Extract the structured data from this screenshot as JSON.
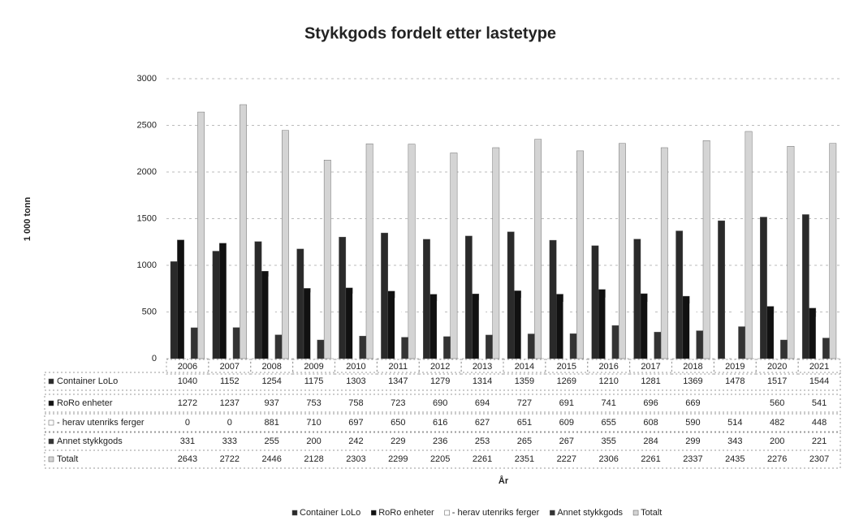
{
  "chart_data": {
    "type": "bar",
    "title": "Stykkgods fordelt etter lastetype",
    "y_label": "1 000 tonn",
    "x_label": "År",
    "categories": [
      "2006",
      "2007",
      "2008",
      "2009",
      "2010",
      "2011",
      "2012",
      "2013",
      "2014",
      "2015",
      "2016",
      "2017",
      "2018",
      "2019",
      "2020",
      "2021"
    ],
    "ylim": [
      0,
      3000
    ],
    "yticks": [
      0,
      500,
      1000,
      1500,
      2000,
      2500,
      3000
    ],
    "grid": true,
    "legend": "bottom",
    "series": [
      {
        "name": "Container LoLo",
        "color": "#2a2a2a",
        "values": [
          1040,
          1152,
          1254,
          1175,
          1303,
          1347,
          1279,
          1314,
          1359,
          1269,
          1210,
          1281,
          1369,
          1478,
          1517,
          1544
        ]
      },
      {
        "name": "RoRo enheter",
        "color": "#111111",
        "values": [
          1272,
          1237,
          937,
          753,
          758,
          723,
          690,
          694,
          727,
          691,
          741,
          696,
          669,
          null,
          560,
          541
        ]
      },
      {
        "name": "- herav utenriks ferger",
        "color": "#ffffff",
        "values": [
          0,
          0,
          881,
          710,
          697,
          650,
          616,
          627,
          651,
          609,
          655,
          608,
          590,
          514,
          482,
          448
        ]
      },
      {
        "name": "Annet stykkgods",
        "color": "#333333",
        "values": [
          331,
          333,
          255,
          200,
          242,
          229,
          236,
          253,
          265,
          267,
          355,
          284,
          299,
          343,
          200,
          221
        ]
      },
      {
        "name": "Totalt",
        "color": "#d4d4d4",
        "values": [
          2643,
          2722,
          2446,
          2128,
          2303,
          2299,
          2205,
          2261,
          2351,
          2227,
          2306,
          2261,
          2337,
          2435,
          2276,
          2307
        ]
      }
    ]
  }
}
